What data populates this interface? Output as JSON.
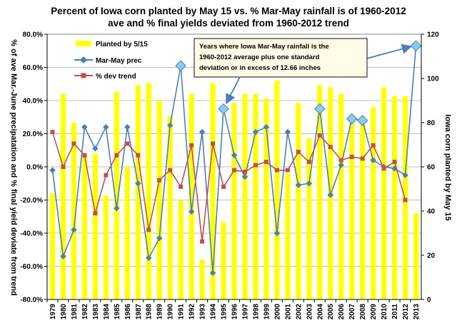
{
  "chart_data": {
    "type": "bar+line",
    "title_lines": [
      "Percent of Iowa corn planted by May 15 vs. %  Mar-May rainfall is of 1960-2012",
      "ave and % final yields deviated from 1960-2012 trend"
    ],
    "ylabel_left": "% of ave Mar.-June precipatation and % final yield deviate from trend",
    "ylabel_right": "Iowa corn planted by May 15",
    "left_axis": {
      "min": -80,
      "max": 80,
      "step": 20,
      "ticks": [
        "-80.0%",
        "-60.0%",
        "-40.0%",
        "-20.0%",
        "0.0%",
        "20.0%",
        "40.0%",
        "60.0%",
        "80.0%"
      ]
    },
    "right_axis": {
      "min": 0,
      "max": 120,
      "step": 20,
      "ticks": [
        "0",
        "20",
        "40",
        "60",
        "80",
        "100",
        "120"
      ]
    },
    "categories": [
      "1979",
      "1980",
      "1981",
      "1982",
      "1983",
      "1984",
      "1985",
      "1986",
      "1987",
      "1988",
      "1989",
      "1990",
      "1991",
      "1992",
      "1993",
      "1994",
      "1995",
      "1996",
      "1997",
      "1998",
      "1999",
      "2000",
      "2001",
      "2002",
      "2003",
      "2004",
      "2005",
      "2006",
      "2007",
      "2008",
      "2009",
      "2010",
      "2011",
      "2012",
      "2013"
    ],
    "series": [
      {
        "name": "Planted by 5/15",
        "axis": "right",
        "kind": "bar",
        "color": "#ffff00",
        "values": [
          48,
          93,
          80,
          65,
          66,
          47,
          94,
          60,
          97,
          98,
          90,
          83,
          45,
          93,
          18,
          98,
          35,
          89,
          93,
          93,
          91,
          99,
          57,
          89,
          73,
          97,
          96,
          93,
          82,
          82,
          87,
          96,
          92,
          92,
          39
        ]
      },
      {
        "name": "Mar-May prec",
        "axis": "left",
        "kind": "line",
        "color": "#4a7ebb",
        "values": [
          -2,
          -54,
          -38,
          24,
          11,
          24,
          -25,
          24,
          -10,
          -55,
          -43,
          25,
          61,
          -27,
          21,
          -64,
          35,
          7,
          -6,
          21,
          24,
          -40,
          21,
          -11,
          -10,
          35,
          -17,
          1,
          29,
          28,
          4,
          0,
          -1,
          -5,
          73
        ]
      },
      {
        "name": "% dev trend",
        "axis": "left",
        "kind": "line",
        "color": "#c0504d",
        "values": [
          21,
          0,
          14,
          7,
          -28,
          -5,
          7,
          14,
          7,
          -38,
          -8,
          -2,
          -12,
          13,
          -45,
          14,
          -12,
          -2,
          -3,
          1,
          3,
          -2,
          -2,
          9,
          3,
          19,
          12,
          4,
          6,
          5,
          13,
          -1,
          3,
          -20,
          null
        ]
      }
    ],
    "highlighted_points": [
      {
        "year": "1991",
        "value": 61
      },
      {
        "year": "1995",
        "value": 35
      },
      {
        "year": "2004",
        "value": 35
      },
      {
        "year": "2007",
        "value": 29
      },
      {
        "year": "2008",
        "value": 28
      },
      {
        "year": "2013",
        "value": 73
      }
    ],
    "annotation": [
      "Years where Iowa Mar-May rainfall is the",
      "1960-2012 average plus one standard",
      "deviation or in excess of 12.66 inches"
    ],
    "legend_placement": "top-left",
    "gridlines": true
  },
  "colors": {
    "bar": "#ffff00",
    "prec_line": "#4a7ebb",
    "dev_line": "#c0504d",
    "highlight_fill": "#87ceeb",
    "annotation_box": "#fffbe6",
    "annotation_border": "#333333",
    "grid": "#a6a6a6"
  }
}
